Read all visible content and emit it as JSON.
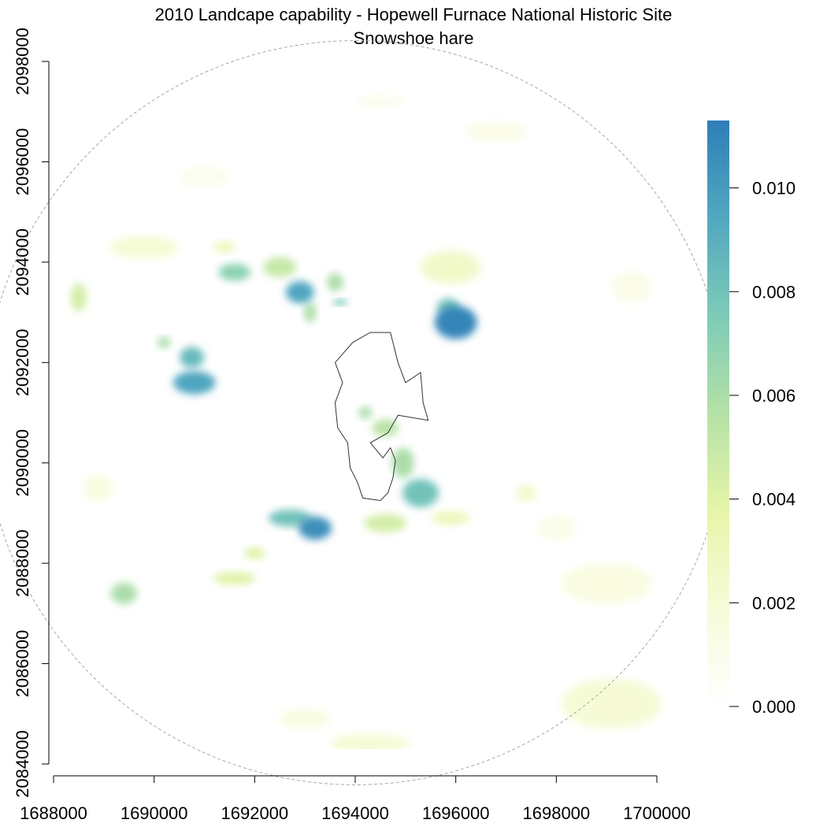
{
  "title": "2010 Landcape capability - Hopewell Furnace National Historic Site",
  "subtitle": "Snowshoe hare",
  "chart_data": {
    "type": "heatmap",
    "title": "2010 Landcape capability - Hopewell Furnace National Historic Site",
    "subtitle": "Snowshoe hare",
    "xlim": [
      1688000,
      1700000
    ],
    "ylim": [
      2084000,
      2098000
    ],
    "x_ticks": [
      "1688000",
      "1690000",
      "1692000",
      "1694000",
      "1696000",
      "1698000",
      "1700000"
    ],
    "y_ticks": [
      "2084000",
      "2086000",
      "2088000",
      "2090000",
      "2092000",
      "2094000",
      "2096000",
      "2098000"
    ],
    "legend": {
      "position": "right",
      "range": [
        0,
        0.0113
      ],
      "ticks": [
        "0.000",
        "0.002",
        "0.004",
        "0.006",
        "0.008",
        "0.010"
      ],
      "colors": [
        "#ffffff",
        "#f7fbd9",
        "#e6f5a9",
        "#b5e1a6",
        "#7dcbb7",
        "#52a7c0",
        "#2f7eb8"
      ]
    },
    "buffer_circle": {
      "center": [
        1694000,
        2091000
      ],
      "radius": 7400
    },
    "park_boundary": [
      [
        1694300,
        2092600
      ],
      [
        1694700,
        2092600
      ],
      [
        1694850,
        2092000
      ],
      [
        1695000,
        2091600
      ],
      [
        1695300,
        2091800
      ],
      [
        1695350,
        2091200
      ],
      [
        1695450,
        2090850
      ],
      [
        1694850,
        2090950
      ],
      [
        1694650,
        2090600
      ],
      [
        1694300,
        2090400
      ],
      [
        1694550,
        2090100
      ],
      [
        1694700,
        2090300
      ],
      [
        1694800,
        2090050
      ],
      [
        1694750,
        2089700
      ],
      [
        1694650,
        2089400
      ],
      [
        1694500,
        2089250
      ],
      [
        1694150,
        2089300
      ],
      [
        1694050,
        2089600
      ],
      [
        1693900,
        2089900
      ],
      [
        1693850,
        2090400
      ],
      [
        1693650,
        2090700
      ],
      [
        1693600,
        2091200
      ],
      [
        1693750,
        2091600
      ],
      [
        1693600,
        2092000
      ],
      [
        1693950,
        2092400
      ],
      [
        1694300,
        2092600
      ]
    ],
    "patches": [
      {
        "x": 1696000,
        "y": 2092800,
        "rx": 420,
        "ry": 330,
        "value": 0.011
      },
      {
        "x": 1695850,
        "y": 2093100,
        "rx": 220,
        "ry": 180,
        "value": 0.008
      },
      {
        "x": 1690800,
        "y": 2091600,
        "rx": 420,
        "ry": 230,
        "value": 0.0095
      },
      {
        "x": 1690750,
        "y": 2092100,
        "rx": 240,
        "ry": 210,
        "value": 0.0085
      },
      {
        "x": 1690200,
        "y": 2092400,
        "rx": 130,
        "ry": 110,
        "value": 0.006
      },
      {
        "x": 1693200,
        "y": 2088700,
        "rx": 330,
        "ry": 230,
        "value": 0.0105
      },
      {
        "x": 1692700,
        "y": 2088900,
        "rx": 420,
        "ry": 170,
        "value": 0.008
      },
      {
        "x": 1692900,
        "y": 2093400,
        "rx": 280,
        "ry": 220,
        "value": 0.0095
      },
      {
        "x": 1693100,
        "y": 2093000,
        "rx": 120,
        "ry": 200,
        "value": 0.006
      },
      {
        "x": 1692500,
        "y": 2093900,
        "rx": 330,
        "ry": 200,
        "value": 0.005
      },
      {
        "x": 1691600,
        "y": 2093800,
        "rx": 320,
        "ry": 170,
        "value": 0.007
      },
      {
        "x": 1691400,
        "y": 2094300,
        "rx": 220,
        "ry": 110,
        "value": 0.003
      },
      {
        "x": 1693600,
        "y": 2093600,
        "rx": 160,
        "ry": 180,
        "value": 0.006
      },
      {
        "x": 1693700,
        "y": 2093200,
        "rx": 150,
        "ry": 60,
        "value": 0.008
      },
      {
        "x": 1695300,
        "y": 2089400,
        "rx": 360,
        "ry": 280,
        "value": 0.008
      },
      {
        "x": 1694950,
        "y": 2090000,
        "rx": 220,
        "ry": 300,
        "value": 0.006
      },
      {
        "x": 1694600,
        "y": 2090700,
        "rx": 260,
        "ry": 170,
        "value": 0.0055
      },
      {
        "x": 1694200,
        "y": 2091000,
        "rx": 130,
        "ry": 120,
        "value": 0.006
      },
      {
        "x": 1694600,
        "y": 2088800,
        "rx": 420,
        "ry": 180,
        "value": 0.0045
      },
      {
        "x": 1695900,
        "y": 2088900,
        "rx": 380,
        "ry": 140,
        "value": 0.003
      },
      {
        "x": 1691600,
        "y": 2087700,
        "rx": 420,
        "ry": 130,
        "value": 0.004
      },
      {
        "x": 1692000,
        "y": 2088200,
        "rx": 200,
        "ry": 120,
        "value": 0.004
      },
      {
        "x": 1689400,
        "y": 2087400,
        "rx": 260,
        "ry": 210,
        "value": 0.006
      },
      {
        "x": 1688500,
        "y": 2093300,
        "rx": 160,
        "ry": 280,
        "value": 0.0045
      },
      {
        "x": 1689800,
        "y": 2094300,
        "rx": 700,
        "ry": 230,
        "value": 0.002
      },
      {
        "x": 1695900,
        "y": 2093900,
        "rx": 600,
        "ry": 330,
        "value": 0.0025
      },
      {
        "x": 1699000,
        "y": 2087600,
        "rx": 900,
        "ry": 400,
        "value": 0.0015
      },
      {
        "x": 1699100,
        "y": 2085200,
        "rx": 1000,
        "ry": 500,
        "value": 0.002
      },
      {
        "x": 1698000,
        "y": 2088700,
        "rx": 400,
        "ry": 260,
        "value": 0.001
      },
      {
        "x": 1697400,
        "y": 2089400,
        "rx": 200,
        "ry": 160,
        "value": 0.0025
      },
      {
        "x": 1694300,
        "y": 2084400,
        "rx": 800,
        "ry": 200,
        "value": 0.002
      },
      {
        "x": 1693000,
        "y": 2084900,
        "rx": 500,
        "ry": 200,
        "value": 0.0015
      },
      {
        "x": 1696800,
        "y": 2096600,
        "rx": 600,
        "ry": 200,
        "value": 0.0012
      },
      {
        "x": 1699500,
        "y": 2093500,
        "rx": 400,
        "ry": 300,
        "value": 0.0012
      },
      {
        "x": 1688900,
        "y": 2089500,
        "rx": 300,
        "ry": 250,
        "value": 0.0015
      },
      {
        "x": 1694500,
        "y": 2097200,
        "rx": 500,
        "ry": 120,
        "value": 0.0008
      },
      {
        "x": 1691000,
        "y": 2095700,
        "rx": 500,
        "ry": 200,
        "value": 0.0008
      }
    ]
  }
}
